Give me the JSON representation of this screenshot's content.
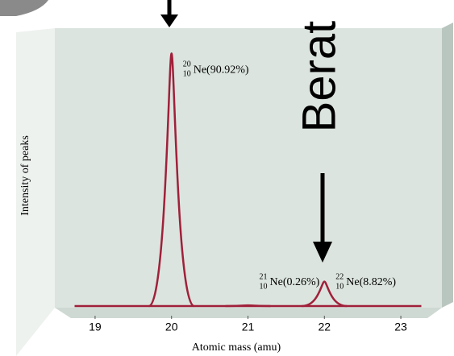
{
  "chart_data": {
    "type": "spectrum",
    "side_text": "Berat",
    "xlabel": "Atomic mass (amu)",
    "ylabel": "Intensity of peaks",
    "x": [
      20,
      21,
      22
    ],
    "values": [
      90.92,
      0.26,
      8.82
    ],
    "value_labels": [
      "Ne(90.92%)",
      "Ne(0.26%)",
      "Ne(8.82%)"
    ],
    "mass_numbers": [
      "20",
      "21",
      "22"
    ],
    "atomic_numbers": [
      "10",
      "10",
      "10"
    ],
    "color": "#a0203a",
    "xlim": [
      18.7,
      23.3
    ],
    "xticks": [
      19,
      20,
      21,
      22,
      23
    ],
    "ylim": [
      0,
      100
    ]
  }
}
